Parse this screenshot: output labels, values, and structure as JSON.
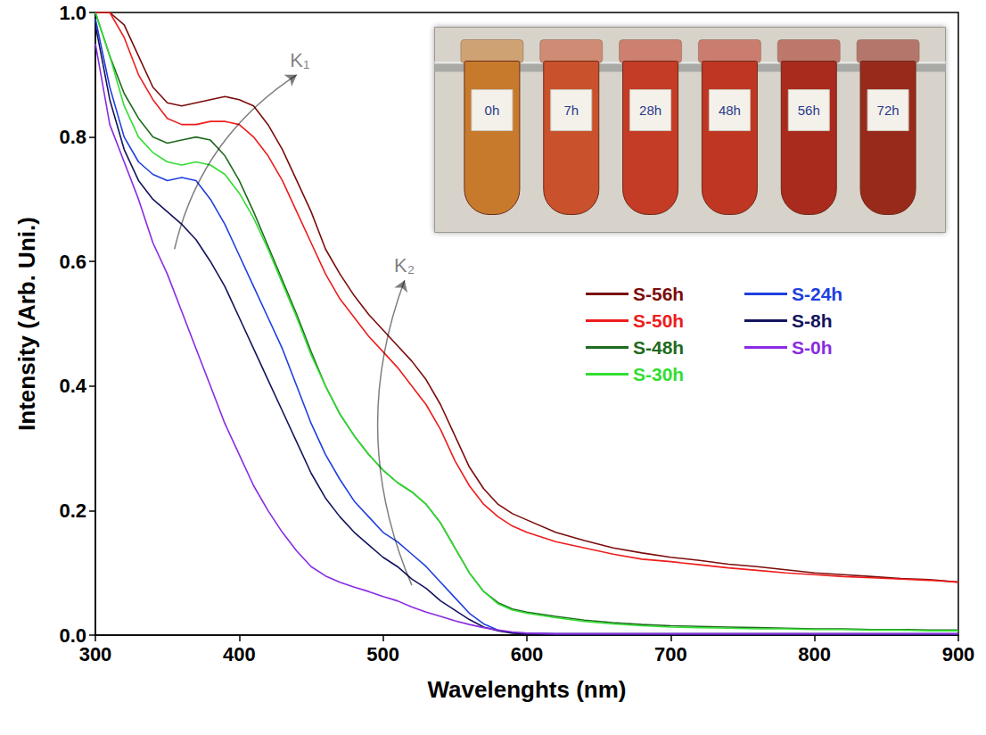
{
  "chart_data": {
    "type": "line",
    "x_label": "Wavelenghts (nm)",
    "y_label": "Intensity (Arb. Uni.)",
    "xlim": [
      300,
      900
    ],
    "xticks": [
      300,
      400,
      500,
      600,
      700,
      800,
      900
    ],
    "ylim": [
      0,
      1
    ],
    "yticks": [
      {
        "value": 0,
        "label": "0.0"
      },
      0.2,
      0.4,
      0.6,
      0.8,
      {
        "value": 1,
        "label": "1.0"
      }
    ],
    "grid": false,
    "legend": "right",
    "x": [
      300,
      310,
      320,
      330,
      340,
      350,
      360,
      370,
      380,
      390,
      400,
      410,
      420,
      430,
      440,
      450,
      460,
      470,
      480,
      490,
      500,
      510,
      520,
      530,
      540,
      550,
      560,
      570,
      580,
      590,
      600,
      620,
      640,
      660,
      680,
      700,
      720,
      740,
      760,
      780,
      800,
      820,
      840,
      860,
      880,
      900
    ],
    "series": [
      {
        "name": "S-56h",
        "color": "#7b0c0c",
        "values": [
          1.0,
          1.0,
          0.98,
          0.93,
          0.88,
          0.855,
          0.85,
          0.855,
          0.86,
          0.865,
          0.86,
          0.85,
          0.82,
          0.78,
          0.73,
          0.68,
          0.62,
          0.58,
          0.545,
          0.515,
          0.49,
          0.465,
          0.44,
          0.41,
          0.37,
          0.32,
          0.27,
          0.235,
          0.21,
          0.195,
          0.185,
          0.165,
          0.152,
          0.14,
          0.132,
          0.125,
          0.12,
          0.114,
          0.11,
          0.105,
          0.1,
          0.097,
          0.094,
          0.091,
          0.089,
          0.085
        ]
      },
      {
        "name": "S-50h",
        "color": "#ee1c1c",
        "values": [
          1.0,
          1.0,
          0.96,
          0.9,
          0.86,
          0.83,
          0.82,
          0.82,
          0.825,
          0.825,
          0.82,
          0.8,
          0.77,
          0.73,
          0.68,
          0.63,
          0.58,
          0.54,
          0.51,
          0.48,
          0.455,
          0.43,
          0.4,
          0.37,
          0.33,
          0.28,
          0.24,
          0.21,
          0.19,
          0.175,
          0.165,
          0.15,
          0.14,
          0.13,
          0.122,
          0.118,
          0.113,
          0.108,
          0.104,
          0.1,
          0.097,
          0.094,
          0.092,
          0.09,
          0.088,
          0.085
        ]
      },
      {
        "name": "S-48h",
        "color": "#1e6b1e",
        "values": [
          1.0,
          0.93,
          0.87,
          0.83,
          0.8,
          0.79,
          0.795,
          0.8,
          0.795,
          0.77,
          0.73,
          0.68,
          0.625,
          0.57,
          0.515,
          0.455,
          0.4,
          0.355,
          0.32,
          0.29,
          0.265,
          0.245,
          0.23,
          0.21,
          0.18,
          0.14,
          0.1,
          0.07,
          0.052,
          0.042,
          0.037,
          0.03,
          0.024,
          0.02,
          0.017,
          0.015,
          0.014,
          0.013,
          0.012,
          0.011,
          0.01,
          0.01,
          0.009,
          0.009,
          0.008,
          0.008
        ]
      },
      {
        "name": "S-30h",
        "color": "#33dd33",
        "values": [
          1.0,
          0.93,
          0.85,
          0.8,
          0.775,
          0.76,
          0.755,
          0.76,
          0.755,
          0.74,
          0.71,
          0.67,
          0.62,
          0.565,
          0.51,
          0.45,
          0.4,
          0.355,
          0.32,
          0.29,
          0.265,
          0.245,
          0.23,
          0.21,
          0.18,
          0.14,
          0.1,
          0.07,
          0.05,
          0.04,
          0.035,
          0.028,
          0.022,
          0.018,
          0.015,
          0.013,
          0.012,
          0.011,
          0.01,
          0.01,
          0.009,
          0.009,
          0.008,
          0.008,
          0.007,
          0.007
        ]
      },
      {
        "name": "S-24h",
        "color": "#1f3fe0",
        "values": [
          0.99,
          0.88,
          0.8,
          0.76,
          0.74,
          0.73,
          0.735,
          0.73,
          0.7,
          0.66,
          0.61,
          0.56,
          0.51,
          0.46,
          0.4,
          0.34,
          0.29,
          0.25,
          0.215,
          0.19,
          0.165,
          0.15,
          0.13,
          0.11,
          0.085,
          0.06,
          0.035,
          0.018,
          0.008,
          0.004,
          0.003,
          0.002,
          0.002,
          0.002,
          0.002,
          0.002,
          0.002,
          0.002,
          0.002,
          0.002,
          0.002,
          0.002,
          0.002,
          0.002,
          0.002,
          0.002
        ]
      },
      {
        "name": "S-8h",
        "color": "#14145e",
        "values": [
          0.98,
          0.86,
          0.78,
          0.73,
          0.7,
          0.68,
          0.66,
          0.635,
          0.6,
          0.56,
          0.51,
          0.46,
          0.41,
          0.36,
          0.31,
          0.26,
          0.22,
          0.19,
          0.165,
          0.145,
          0.125,
          0.11,
          0.09,
          0.075,
          0.055,
          0.04,
          0.025,
          0.013,
          0.007,
          0.003,
          0.002,
          0.002,
          0.002,
          0.002,
          0.002,
          0.002,
          0.002,
          0.002,
          0.002,
          0.002,
          0.002,
          0.002,
          0.002,
          0.002,
          0.002,
          0.002
        ]
      },
      {
        "name": "S-0h",
        "color": "#8a2be2",
        "values": [
          0.95,
          0.82,
          0.76,
          0.7,
          0.63,
          0.58,
          0.52,
          0.46,
          0.4,
          0.34,
          0.29,
          0.24,
          0.2,
          0.165,
          0.135,
          0.11,
          0.095,
          0.085,
          0.077,
          0.07,
          0.062,
          0.055,
          0.045,
          0.037,
          0.03,
          0.023,
          0.017,
          0.012,
          0.008,
          0.005,
          0.003,
          0.002,
          0.002,
          0.002,
          0.002,
          0.002,
          0.002,
          0.002,
          0.002,
          0.002,
          0.002,
          0.002,
          0.002,
          0.002,
          0.002,
          0.002
        ]
      }
    ],
    "annotations": [
      {
        "text": "K₁",
        "from": [
          355,
          0.62
        ],
        "to": [
          440,
          0.9
        ]
      },
      {
        "text": "K₂",
        "from": [
          520,
          0.08
        ],
        "to": [
          515,
          0.57
        ]
      }
    ],
    "inset": {
      "labels": [
        "0h",
        "7h",
        "28h",
        "48h",
        "56h",
        "72h"
      ],
      "colors": [
        "#c77a2c",
        "#c9512b",
        "#c43b26",
        "#bf3722",
        "#a82b1d",
        "#982a1c"
      ]
    }
  }
}
